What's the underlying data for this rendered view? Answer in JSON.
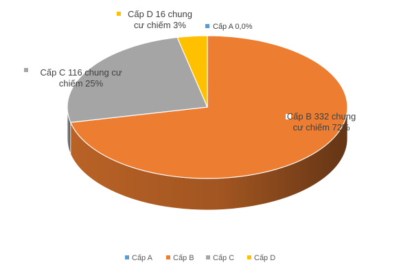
{
  "chart_data": {
    "type": "pie",
    "title": "",
    "categories": [
      "Cấp A",
      "Cấp B",
      "Cấp C",
      "Cấp D"
    ],
    "values": [
      0,
      332,
      116,
      16
    ],
    "percent_labels": [
      "0,0%",
      "72%",
      "25%",
      "3%"
    ],
    "colors": [
      "#5b9bd5",
      "#ed7d31",
      "#a5a5a5",
      "#ffc000"
    ],
    "legend_position": "bottom",
    "data_labels": [
      {
        "category": "Cấp A",
        "lines": [
          "Cấp A  0,0%"
        ]
      },
      {
        "category": "Cấp B",
        "lines": [
          "Cấp B 332 chung",
          "cư chiếm 72%"
        ]
      },
      {
        "category": "Cấp C",
        "lines": [
          "Cấp C 116 chung cư",
          "chiếm 25%"
        ]
      },
      {
        "category": "Cấp D",
        "lines": [
          "Cấp D 16 chung",
          "cư chiếm 3%"
        ]
      }
    ]
  }
}
